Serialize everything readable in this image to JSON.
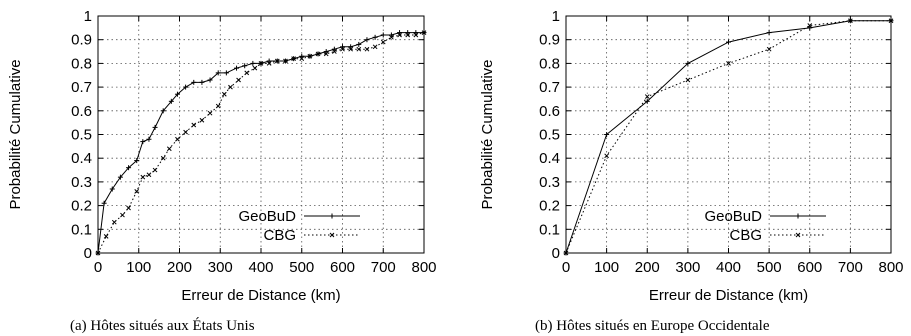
{
  "chart_data": [
    {
      "type": "line",
      "caption": "(a)  Hôtes situés aux États Unis",
      "xlabel": "Erreur de Distance (km)",
      "ylabel": "Probabilité Cumulative",
      "xlim": [
        0,
        800
      ],
      "ylim": [
        0,
        1
      ],
      "xticks": [
        "0",
        "100",
        "200",
        "300",
        "400",
        "500",
        "600",
        "700",
        "800"
      ],
      "yticks": [
        "0",
        "0.1",
        "0.2",
        "0.3",
        "0.4",
        "0.5",
        "0.6",
        "0.7",
        "0.8",
        "0.9",
        "1"
      ],
      "grid": true,
      "legend_position": "bottom-right",
      "series": [
        {
          "name": "GeoBuD",
          "style": "solid",
          "marker": "+",
          "x": [
            0,
            15,
            35,
            55,
            75,
            95,
            110,
            125,
            140,
            160,
            180,
            195,
            215,
            235,
            255,
            275,
            295,
            315,
            340,
            360,
            380,
            400,
            420,
            440,
            460,
            480,
            500,
            520,
            540,
            560,
            580,
            600,
            620,
            640,
            660,
            680,
            700,
            720,
            740,
            760,
            780,
            800
          ],
          "y": [
            0,
            0.21,
            0.27,
            0.32,
            0.36,
            0.39,
            0.47,
            0.48,
            0.53,
            0.6,
            0.64,
            0.67,
            0.7,
            0.72,
            0.72,
            0.73,
            0.76,
            0.76,
            0.78,
            0.79,
            0.8,
            0.8,
            0.81,
            0.81,
            0.81,
            0.82,
            0.83,
            0.83,
            0.84,
            0.85,
            0.86,
            0.87,
            0.87,
            0.88,
            0.9,
            0.91,
            0.92,
            0.92,
            0.93,
            0.93,
            0.93,
            0.93
          ]
        },
        {
          "name": "CBG",
          "style": "dotted",
          "marker": "x",
          "x": [
            0,
            20,
            40,
            60,
            75,
            95,
            110,
            125,
            140,
            160,
            175,
            195,
            215,
            235,
            255,
            275,
            295,
            310,
            325,
            345,
            365,
            385,
            400,
            420,
            440,
            460,
            480,
            500,
            520,
            540,
            560,
            580,
            600,
            620,
            640,
            660,
            680,
            700,
            720,
            740,
            760,
            780,
            800
          ],
          "y": [
            0,
            0.07,
            0.13,
            0.16,
            0.19,
            0.26,
            0.32,
            0.33,
            0.35,
            0.4,
            0.44,
            0.48,
            0.51,
            0.54,
            0.56,
            0.59,
            0.62,
            0.67,
            0.7,
            0.73,
            0.76,
            0.78,
            0.8,
            0.8,
            0.81,
            0.81,
            0.82,
            0.82,
            0.83,
            0.84,
            0.84,
            0.85,
            0.86,
            0.86,
            0.86,
            0.86,
            0.87,
            0.89,
            0.91,
            0.92,
            0.92,
            0.92,
            0.93
          ]
        }
      ]
    },
    {
      "type": "line",
      "caption": "(b)  Hôtes situés en Europe Occidentale",
      "xlabel": "Erreur de Distance (km)",
      "ylabel": "Probabilité Cumulative",
      "xlim": [
        0,
        800
      ],
      "ylim": [
        0,
        1
      ],
      "xticks": [
        "0",
        "100",
        "200",
        "300",
        "400",
        "500",
        "600",
        "700",
        "800"
      ],
      "yticks": [
        "0",
        "0.1",
        "0.2",
        "0.3",
        "0.4",
        "0.5",
        "0.6",
        "0.7",
        "0.8",
        "0.9",
        "1"
      ],
      "grid": true,
      "legend_position": "bottom-right",
      "series": [
        {
          "name": "GeoBuD",
          "style": "solid",
          "marker": "+",
          "x": [
            0,
            100,
            200,
            300,
            400,
            500,
            600,
            700,
            800
          ],
          "y": [
            0,
            0.5,
            0.64,
            0.8,
            0.89,
            0.93,
            0.95,
            0.98,
            0.98
          ]
        },
        {
          "name": "CBG",
          "style": "dotted",
          "marker": "x",
          "x": [
            0,
            100,
            200,
            300,
            400,
            500,
            600,
            700,
            800
          ],
          "y": [
            0,
            0.41,
            0.66,
            0.73,
            0.8,
            0.86,
            0.96,
            0.98,
            0.98
          ]
        }
      ]
    }
  ]
}
